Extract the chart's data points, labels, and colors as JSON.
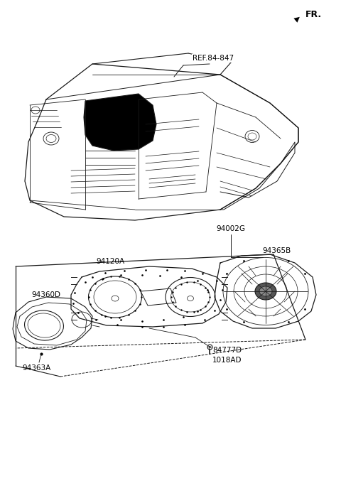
{
  "bg_color": "#ffffff",
  "line_color": "#1a1a1a",
  "labels": {
    "REF_84_847": "REF.84-847",
    "94002G": "94002G",
    "94365B": "94365B",
    "94120A": "94120A",
    "94360D": "94360D",
    "94363A": "94363A",
    "84777D_1018AD": "84777D\n1018AD",
    "FR": "FR."
  }
}
